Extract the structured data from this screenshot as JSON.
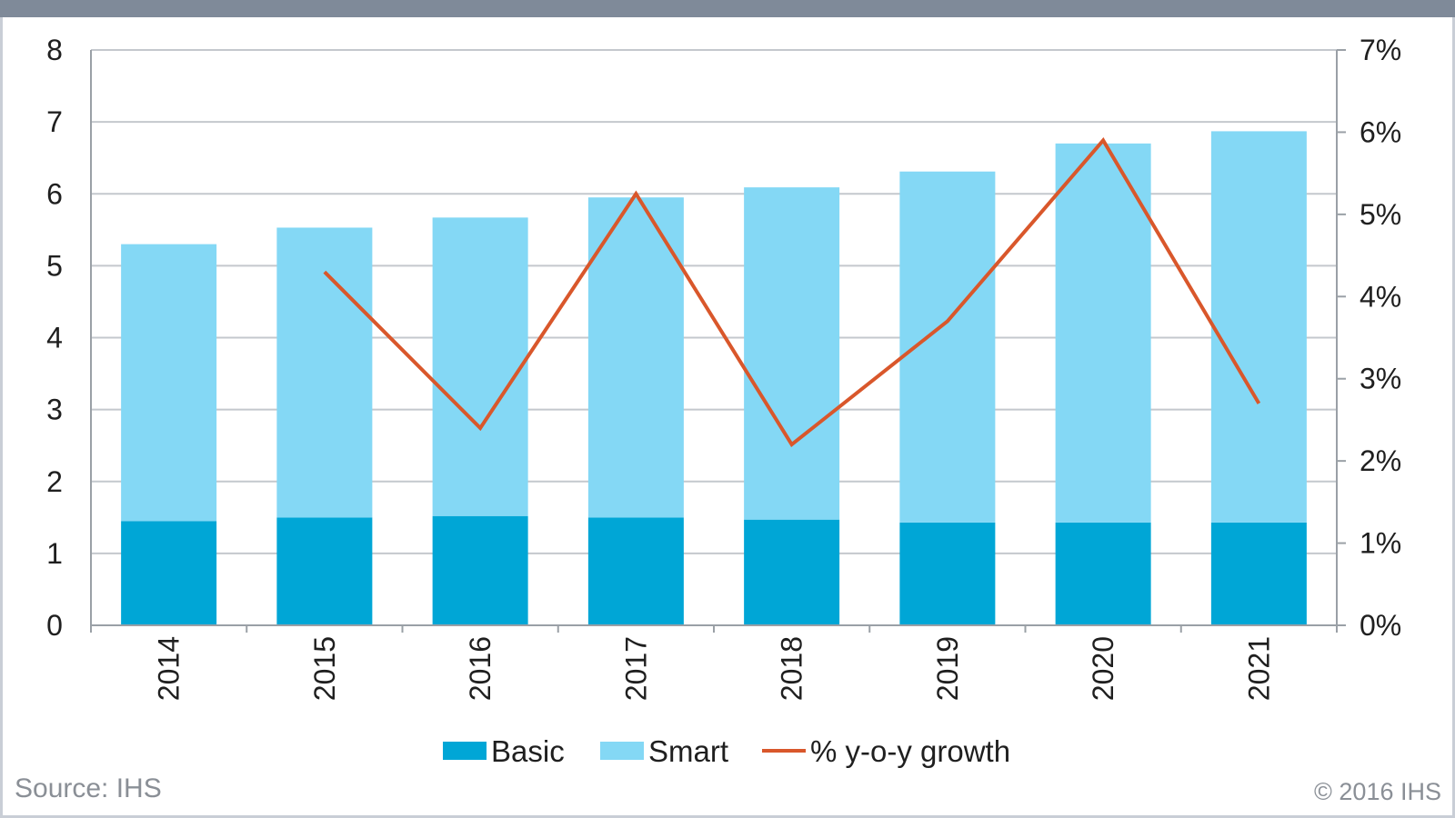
{
  "chart_data": {
    "type": "bar",
    "stacked": true,
    "categories": [
      "2014",
      "2015",
      "2016",
      "2017",
      "2018",
      "2019",
      "2020",
      "2021"
    ],
    "series": [
      {
        "name": "Basic",
        "type": "bar",
        "color": "#00a6d6",
        "values": [
          1.45,
          1.5,
          1.52,
          1.5,
          1.47,
          1.43,
          1.43,
          1.43
        ]
      },
      {
        "name": "Smart",
        "type": "bar",
        "color": "#84d8f5",
        "values": [
          3.85,
          4.03,
          4.15,
          4.45,
          4.62,
          4.88,
          5.27,
          5.44
        ]
      },
      {
        "name": "% y-o-y growth",
        "type": "line",
        "axis": "right",
        "color": "#d9572b",
        "values": [
          null,
          4.3,
          2.4,
          5.25,
          2.2,
          3.7,
          5.9,
          2.7
        ]
      }
    ],
    "y_left": {
      "min": 0,
      "max": 8,
      "ticks": [
        "0",
        "1",
        "2",
        "3",
        "4",
        "5",
        "6",
        "7",
        "8"
      ]
    },
    "y_right": {
      "min": 0,
      "max": 7,
      "ticks": [
        "0%",
        "1%",
        "2%",
        "3%",
        "4%",
        "5%",
        "6%",
        "7%"
      ]
    },
    "grid": true,
    "legend_position": "bottom"
  },
  "footer": {
    "source": "Source: IHS",
    "copyright": "© 2016 IHS"
  }
}
